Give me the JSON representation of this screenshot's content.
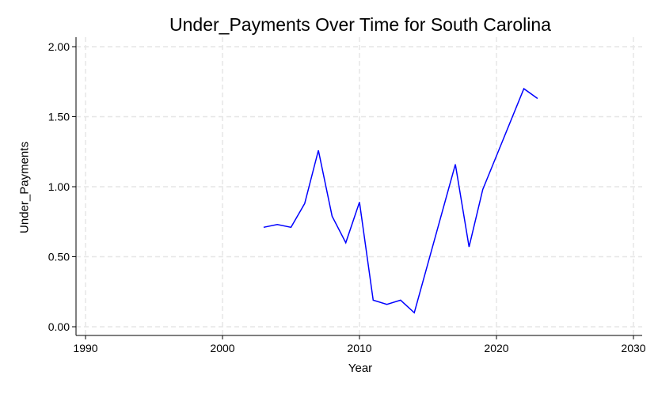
{
  "chart_data": {
    "type": "line",
    "title": "Under_Payments Over Time for South Carolina",
    "xlabel": "Year",
    "ylabel": "Under_Payments",
    "xlim": [
      1990,
      2030
    ],
    "ylim": [
      0,
      2
    ],
    "x_ticks": [
      1990,
      2000,
      2010,
      2020,
      2030
    ],
    "y_ticks": [
      "0.00",
      "0.50",
      "1.00",
      "1.50",
      "2.00"
    ],
    "grid": true,
    "line_color": "#0000ff",
    "grid_color": "#e6e6e6",
    "x": [
      2003,
      2004,
      2005,
      2006,
      2007,
      2008,
      2009,
      2010,
      2011,
      2012,
      2013,
      2014,
      2017,
      2018,
      2019,
      2022,
      2023
    ],
    "y": [
      0.71,
      0.73,
      0.71,
      0.88,
      1.26,
      0.79,
      0.6,
      0.89,
      0.19,
      0.16,
      0.19,
      0.1,
      1.16,
      0.57,
      0.98,
      1.7,
      1.63
    ]
  }
}
